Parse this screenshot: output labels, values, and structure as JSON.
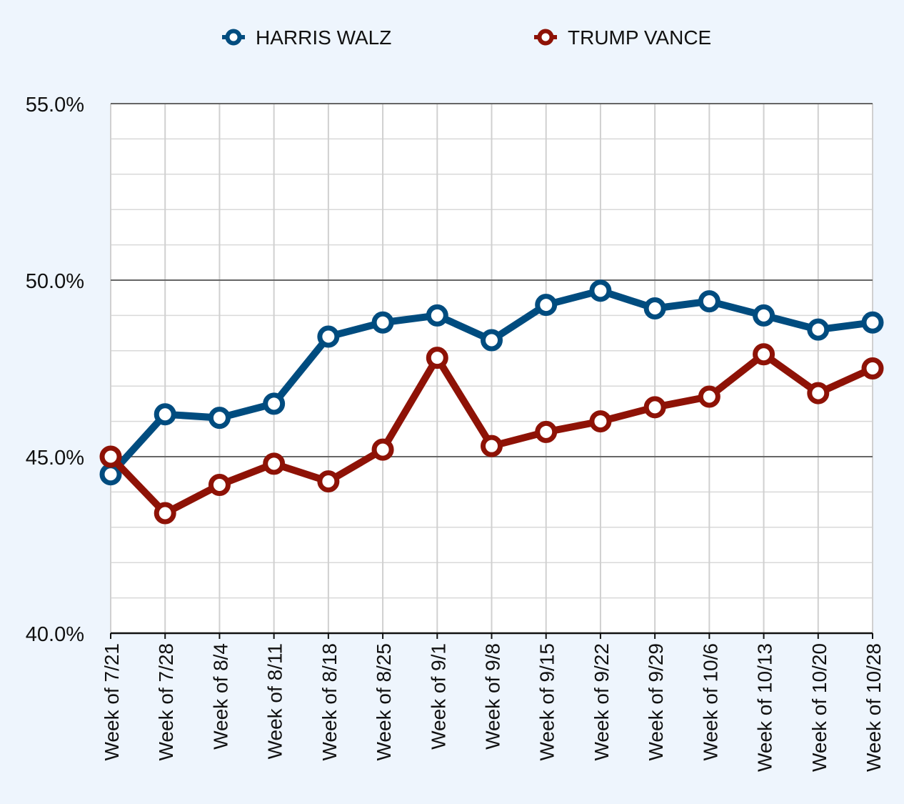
{
  "chart_data": {
    "type": "line",
    "title": "",
    "xlabel": "",
    "ylabel": "",
    "ylim": [
      40,
      55
    ],
    "y_ticks": [
      "55.0%",
      "50.0%",
      "45.0%",
      "40.0%"
    ],
    "y_tick_values": [
      55,
      50,
      45,
      40
    ],
    "grid": true,
    "legend_position": "top-center",
    "categories": [
      "Week of 7/21",
      "Week of 7/28",
      "Week of 8/4",
      "Week of 8/11",
      "Week of 8/18",
      "Week of 8/25",
      "Week of 9/1",
      "Week of 9/8",
      "Week of 9/15",
      "Week of 9/22",
      "Week of 9/29",
      "Week of 10/6",
      "Week of 10/13",
      "Week of 10/20",
      "Week of 10/28"
    ],
    "series": [
      {
        "name": "HARRIS WALZ",
        "color": "#004c7f",
        "values": [
          44.5,
          46.2,
          46.1,
          46.5,
          48.4,
          48.8,
          49.0,
          48.3,
          49.3,
          49.7,
          49.2,
          49.4,
          49.0,
          48.6,
          48.8
        ]
      },
      {
        "name": "TRUMP VANCE",
        "color": "#8e1206",
        "values": [
          45.0,
          43.4,
          44.2,
          44.8,
          44.3,
          45.2,
          47.8,
          45.3,
          45.7,
          46.0,
          46.4,
          46.7,
          47.9,
          46.8,
          47.5
        ]
      }
    ]
  }
}
